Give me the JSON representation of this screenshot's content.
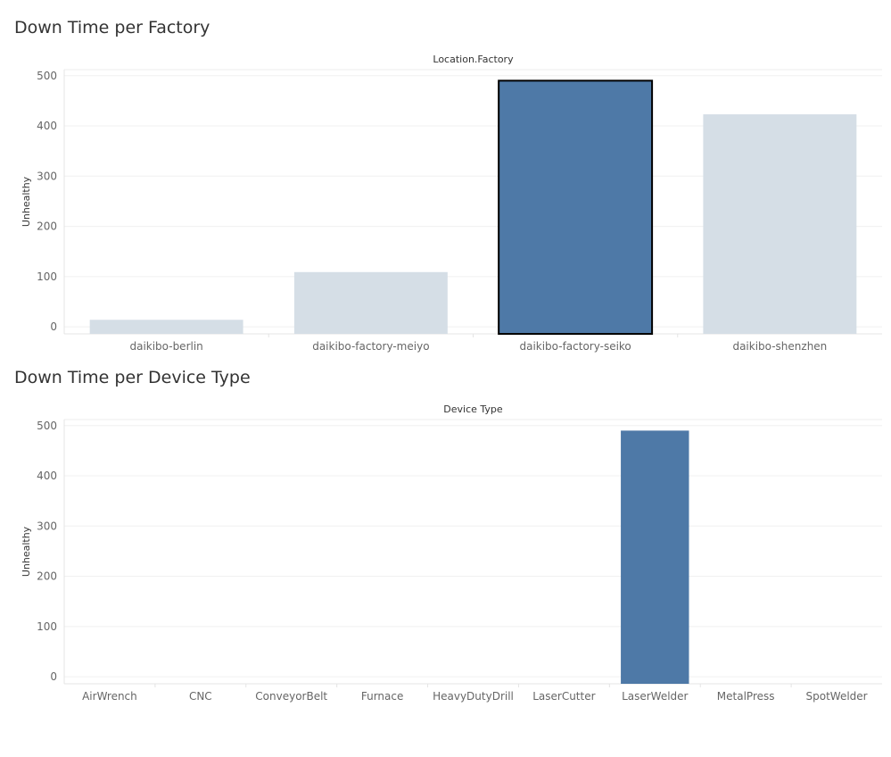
{
  "titles": {
    "factory": "Down Time per Factory",
    "device": "Down Time per Device Type"
  },
  "chart_data": [
    {
      "type": "bar",
      "title": "Down Time per Factory",
      "column_header": "Location.Factory",
      "xlabel": "",
      "ylabel": "Unhealthy",
      "categories": [
        "daikibo-berlin",
        "daikibo-factory-meiyo",
        "daikibo-factory-seiko",
        "daikibo-shenzhen"
      ],
      "values": [
        14,
        109,
        490,
        423
      ],
      "highlighted": "daikibo-factory-seiko",
      "yticks": [
        0,
        100,
        200,
        300,
        400,
        500
      ],
      "ylim": [
        -14,
        512
      ],
      "grid": true,
      "colors": {
        "highlight": "#4e79a7",
        "muted": "#d5dee6",
        "outline": "#000000"
      }
    },
    {
      "type": "bar",
      "title": "Down Time per Device Type",
      "column_header": "Device Type",
      "xlabel": "",
      "ylabel": "Unhealthy",
      "categories": [
        "AirWrench",
        "CNC",
        "ConveyorBelt",
        "Furnace",
        "HeavyDutyDrill",
        "LaserCutter",
        "LaserWelder",
        "MetalPress",
        "SpotWelder"
      ],
      "values": [
        0,
        0,
        0,
        0,
        0,
        0,
        490,
        0,
        0
      ],
      "yticks": [
        0,
        100,
        200,
        300,
        400,
        500
      ],
      "ylim": [
        -14,
        512
      ],
      "grid": true,
      "colors": {
        "bar": "#4e79a7"
      }
    }
  ]
}
